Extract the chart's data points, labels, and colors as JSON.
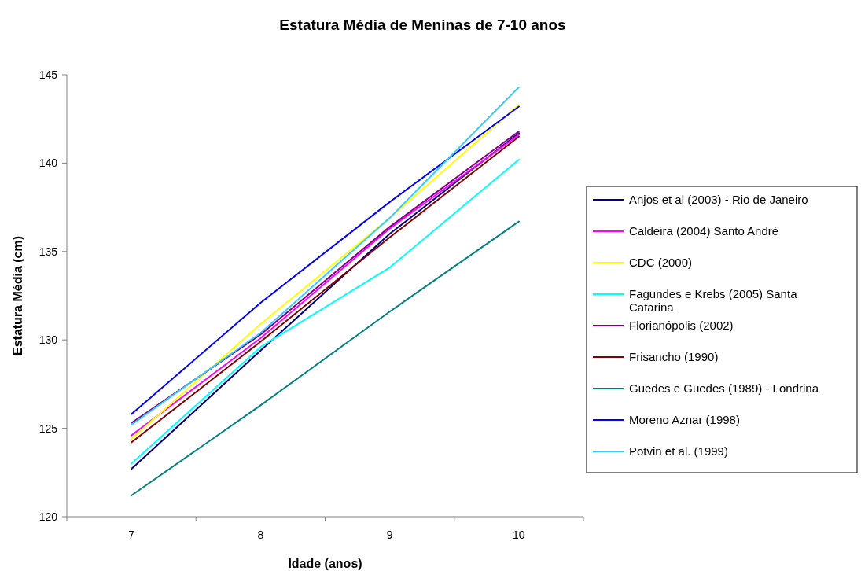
{
  "chart_data": {
    "type": "line",
    "title": "Estatura Média de Meninas de 7-10 anos",
    "xlabel": "Idade (anos)",
    "ylabel": "Estatura Média (cm)",
    "categories": [
      "7",
      "8",
      "9",
      "10"
    ],
    "ylim": [
      120,
      145
    ],
    "yticks": [
      120,
      125,
      130,
      135,
      140,
      145
    ],
    "grid": false,
    "legend": "right",
    "marker": "none",
    "series": [
      {
        "name": "Anjos et al (2003) - Rio de Janeiro",
        "color": "#000080",
        "values": [
          122.7,
          129.4,
          136.0,
          141.7
        ]
      },
      {
        "name": "Caldeira (2004) Santo André",
        "color": "#ff00ff",
        "values": [
          124.6,
          130.1,
          136.3,
          141.6
        ]
      },
      {
        "name": "CDC (2000)",
        "color": "#ffff00",
        "values": [
          124.4,
          130.9,
          136.9,
          143.3
        ]
      },
      {
        "name": "Fagundes e Krebs (2005) Santa Catarina",
        "color": "#00ffff",
        "values": [
          123.0,
          129.6,
          134.1,
          140.2
        ]
      },
      {
        "name": "Florianópolis (2002)",
        "color": "#800080",
        "values": [
          125.3,
          130.3,
          136.4,
          141.8
        ]
      },
      {
        "name": "Frisancho (1990)",
        "color": "#800000",
        "values": [
          124.2,
          129.9,
          135.8,
          141.5
        ]
      },
      {
        "name": "Guedes e Guedes (1989) - Londrina",
        "color": "#008080",
        "values": [
          121.2,
          126.3,
          131.6,
          136.7
        ]
      },
      {
        "name": "Moreno Aznar (1998)",
        "color": "#0000ff",
        "values": [
          125.8,
          132.1,
          137.8,
          143.2
        ]
      },
      {
        "name": "Potvin et al. (1999)",
        "color": "#33ccff",
        "values": [
          125.2,
          130.4,
          136.9,
          144.3
        ]
      }
    ]
  }
}
